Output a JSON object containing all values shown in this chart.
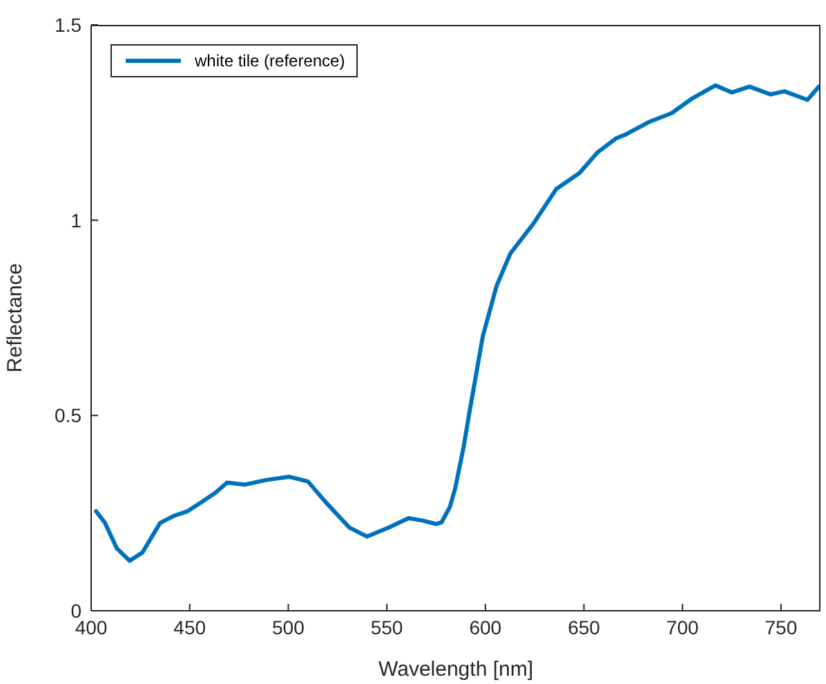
{
  "chart_data": {
    "type": "line",
    "xlabel": "Wavelength [nm]",
    "ylabel": "Reflectance",
    "xlim": [
      400,
      770
    ],
    "ylim": [
      0,
      1.5
    ],
    "xticks": [
      400,
      450,
      500,
      550,
      600,
      650,
      700,
      750
    ],
    "yticks": [
      0,
      0.5,
      1,
      1.5
    ],
    "grid": false,
    "legend": "top left",
    "marker": "none",
    "line_style": "solid",
    "series": [
      {
        "name": "white tile (reference)",
        "color": "#0072bd",
        "x": [
          402.5,
          407,
          413,
          419.5,
          426,
          435,
          442,
          449,
          456,
          463,
          469,
          478,
          489,
          500.6,
          510,
          519,
          531,
          540,
          551,
          561,
          568,
          575,
          577.7,
          582,
          584.7,
          589,
          591.7,
          598.7,
          605.7,
          612.7,
          624.5,
          636,
          647.8,
          657,
          666.5,
          671,
          682.8,
          694.5,
          705,
          716.7,
          725,
          734,
          744.7,
          751.7,
          763.4,
          769.2
        ],
        "values": [
          0.255,
          0.225,
          0.16,
          0.128,
          0.149,
          0.225,
          0.243,
          0.255,
          0.278,
          0.302,
          0.328,
          0.323,
          0.335,
          0.343,
          0.331,
          0.278,
          0.213,
          0.19,
          0.213,
          0.237,
          0.231,
          0.222,
          0.226,
          0.266,
          0.314,
          0.42,
          0.502,
          0.703,
          0.832,
          0.915,
          0.992,
          1.08,
          1.121,
          1.174,
          1.21,
          1.219,
          1.251,
          1.274,
          1.312,
          1.345,
          1.327,
          1.342,
          1.322,
          1.33,
          1.308,
          1.342
        ]
      }
    ]
  }
}
